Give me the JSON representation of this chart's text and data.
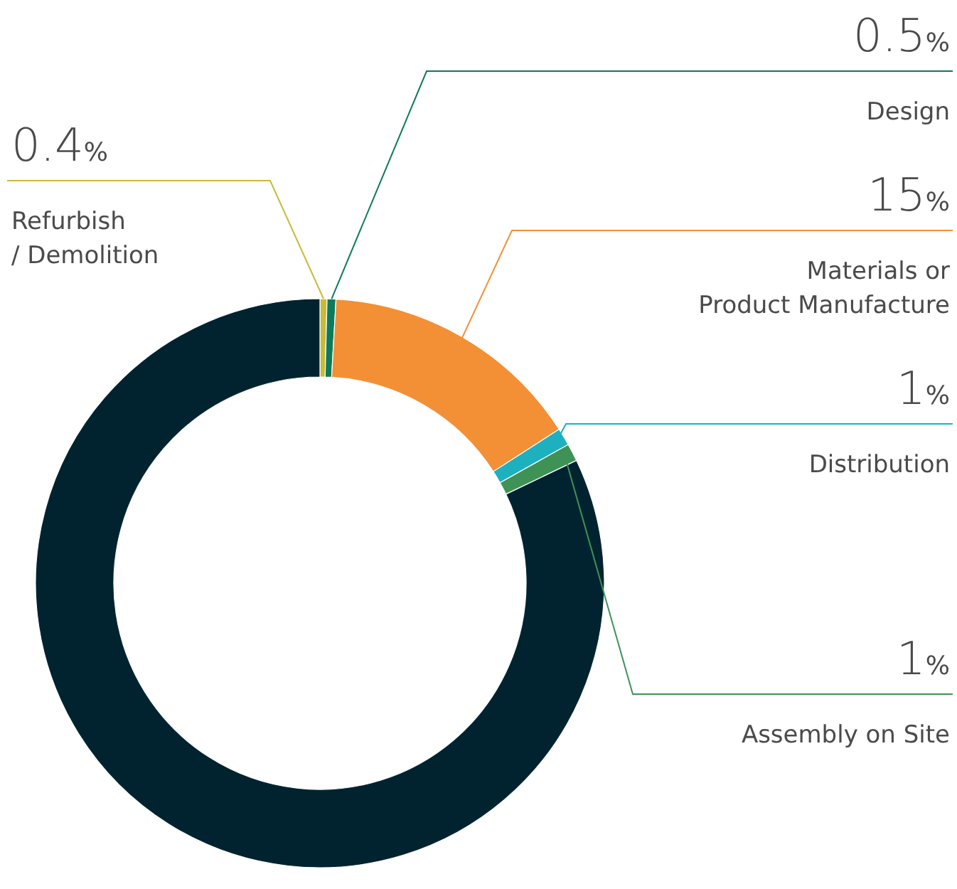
{
  "chart_data": {
    "type": "donut",
    "categories": [
      "Refurbish\n/ Demolition",
      "Design",
      "Materials or\nProduct Manufacture",
      "Distribution",
      "Assembly on Site",
      null
    ],
    "values": [
      0.4,
      0.5,
      15,
      1,
      1,
      82.1
    ],
    "colors": [
      "#c8bb3a",
      "#0d7a5c",
      "#f39035",
      "#1db1bf",
      "#3f9256",
      "#012330"
    ],
    "value_labels": [
      "0.4%",
      "0.5%",
      "15%",
      "1%",
      "1%",
      null
    ]
  }
}
